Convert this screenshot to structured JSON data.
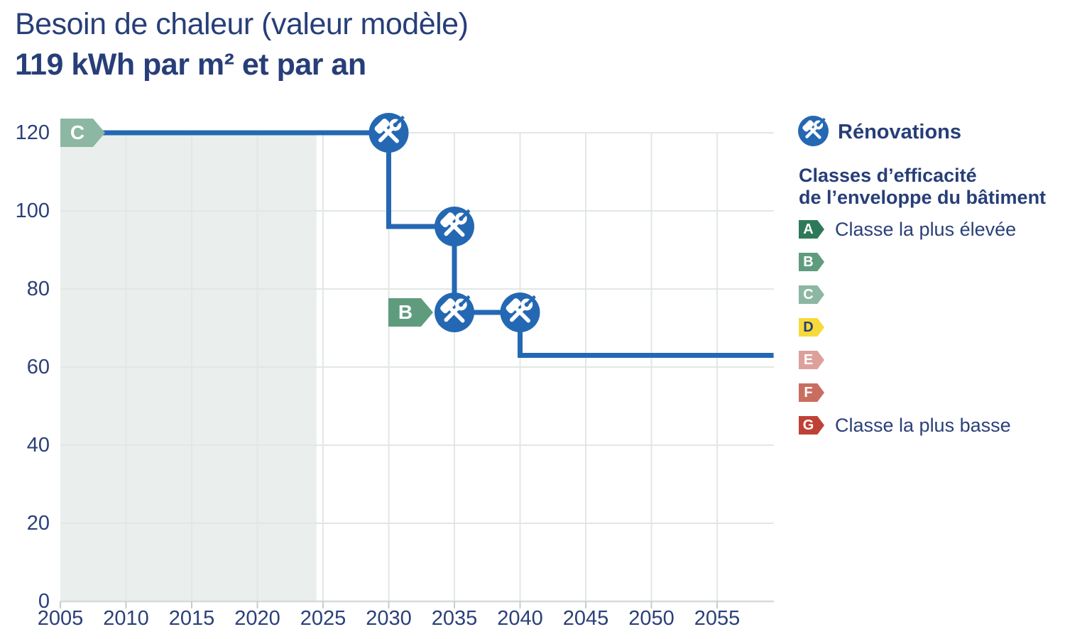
{
  "chart_data": {
    "type": "line",
    "line_style": "step",
    "title": "Besoin de chaleur (valeur modèle)",
    "value_label": "119 kWh par m² et par an",
    "current_value": 119,
    "unit": "kWh par m² et par an",
    "x_ticks": [
      2005,
      2010,
      2015,
      2020,
      2025,
      2030,
      2035,
      2040,
      2045,
      2050,
      2055
    ],
    "y_ticks": [
      0,
      20,
      40,
      60,
      80,
      100,
      120
    ],
    "xlim": [
      2005,
      2059.3
    ],
    "ylim": [
      0,
      124
    ],
    "grid": true,
    "past_region": {
      "from_year": 2005,
      "to_year": 2024.5
    },
    "segments": [
      {
        "from_year": 2005,
        "to_year": 2030,
        "value": 119
      },
      {
        "from_year": 2030,
        "to_year": 2035,
        "value": 96
      },
      {
        "from_year": 2035,
        "to_year": 2040,
        "value": 74
      },
      {
        "from_year": 2040,
        "to_year": 2059.3,
        "value": 63
      }
    ],
    "renovation_markers": [
      {
        "year": 2030,
        "value": 119
      },
      {
        "year": 2035,
        "value": 96
      },
      {
        "year": 2035,
        "value": 74
      },
      {
        "year": 2040,
        "value": 74
      }
    ],
    "class_badges": [
      {
        "letter": "C",
        "year": 2005,
        "value": 119,
        "align": "start"
      },
      {
        "letter": "B",
        "year": 2035,
        "value": 74,
        "align": "left-of-marker"
      }
    ]
  },
  "legend": {
    "renovations_label": "Rénovations",
    "heading_line1": "Classes d’efficacité",
    "heading_line2": "de l’enveloppe du bâtiment",
    "classes": [
      {
        "letter": "A",
        "label": "Classe la plus élevée",
        "color": "#2e7a58",
        "letter_color": "#ffffff"
      },
      {
        "letter": "B",
        "label": "",
        "color": "#5f9c7e",
        "letter_color": "#ffffff"
      },
      {
        "letter": "C",
        "label": "",
        "color": "#8cb7a2",
        "letter_color": "#ffffff"
      },
      {
        "letter": "D",
        "label": "",
        "color": "#f6da3b",
        "letter_color": "#273e78"
      },
      {
        "letter": "E",
        "label": "",
        "color": "#dda19b",
        "letter_color": "#ffffff"
      },
      {
        "letter": "F",
        "label": "",
        "color": "#ca6d61",
        "letter_color": "#ffffff"
      },
      {
        "letter": "G",
        "label": "Classe la plus basse",
        "color": "#bf4136",
        "letter_color": "#ffffff"
      }
    ]
  },
  "colors": {
    "navy": "#273e78",
    "blue": "#2468b3",
    "grid": "#e2e7e6",
    "axis_line": "#d5dbda",
    "tick": "#c4cdcd",
    "past_region_fill": "#eaeeec",
    "background": "#ffffff"
  }
}
